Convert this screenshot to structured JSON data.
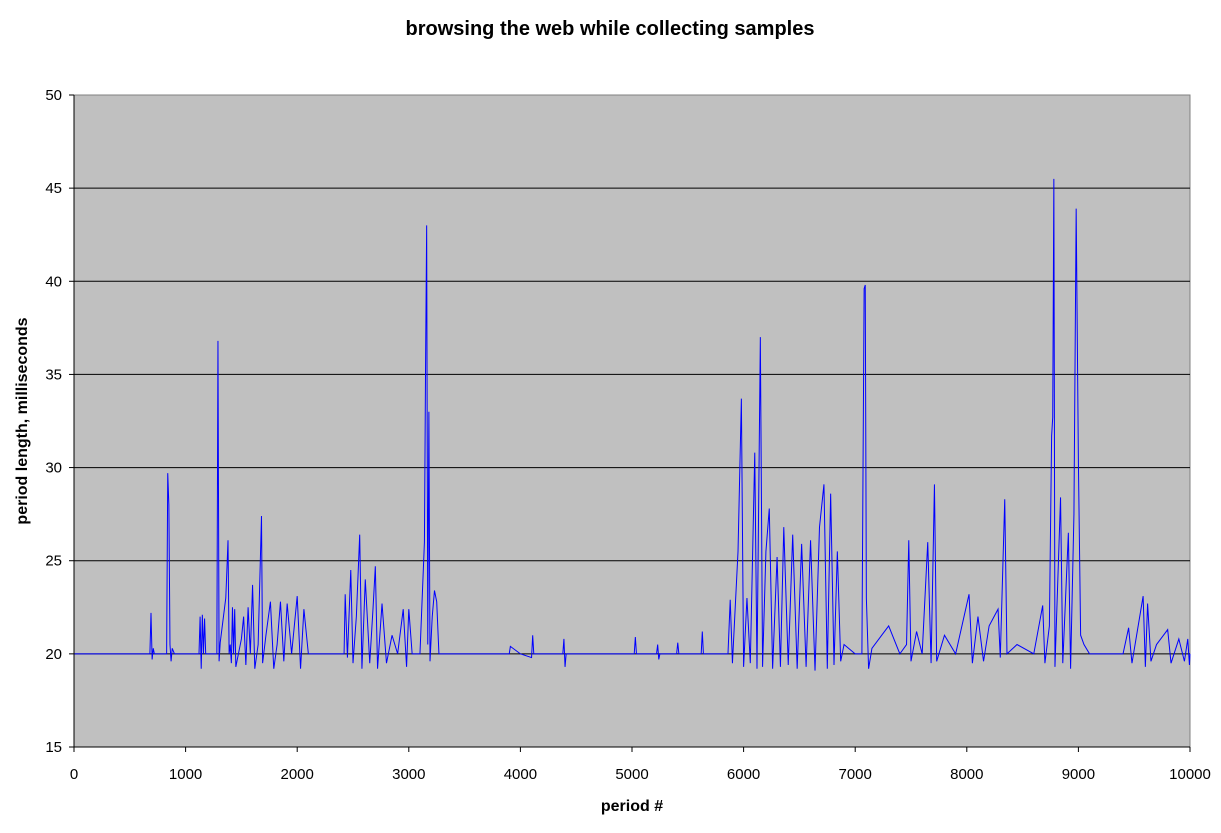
{
  "chart_data": {
    "type": "line",
    "title": "browsing the web while collecting samples",
    "xlabel": "period #",
    "ylabel": "period length, milliseconds",
    "xlim": [
      0,
      10000
    ],
    "ylim": [
      15,
      50
    ],
    "xticks": [
      0,
      1000,
      2000,
      3000,
      4000,
      5000,
      6000,
      7000,
      8000,
      9000,
      10000
    ],
    "yticks": [
      15,
      20,
      25,
      30,
      35,
      40,
      45,
      50
    ],
    "grid": "horizontal major gridlines",
    "legend": "none",
    "baseline": 20,
    "colors": {
      "series": "#0000ff",
      "plot_area": "#c0c0c0",
      "gridline": "#000000"
    },
    "series": [
      {
        "values_note_free": true,
        "points": [
          [
            0,
            20
          ],
          [
            680,
            20
          ],
          [
            690,
            22.2
          ],
          [
            700,
            19.7
          ],
          [
            710,
            20.3
          ],
          [
            720,
            20
          ],
          [
            830,
            20
          ],
          [
            840,
            29.7
          ],
          [
            850,
            28
          ],
          [
            860,
            20.5
          ],
          [
            870,
            19.6
          ],
          [
            880,
            20.3
          ],
          [
            900,
            20
          ],
          [
            1120,
            20
          ],
          [
            1130,
            22
          ],
          [
            1140,
            19.2
          ],
          [
            1150,
            22.1
          ],
          [
            1160,
            20
          ],
          [
            1170,
            21.9
          ],
          [
            1180,
            20
          ],
          [
            1280,
            20
          ],
          [
            1290,
            36.8
          ],
          [
            1300,
            19.6
          ],
          [
            1310,
            20.6
          ],
          [
            1360,
            23
          ],
          [
            1370,
            24.5
          ],
          [
            1380,
            26.1
          ],
          [
            1390,
            20
          ],
          [
            1400,
            20.5
          ],
          [
            1410,
            19.5
          ],
          [
            1420,
            22.5
          ],
          [
            1430,
            20
          ],
          [
            1440,
            22.4
          ],
          [
            1450,
            19.3
          ],
          [
            1500,
            20.8
          ],
          [
            1520,
            22
          ],
          [
            1540,
            19.4
          ],
          [
            1560,
            22.5
          ],
          [
            1580,
            20
          ],
          [
            1600,
            23.7
          ],
          [
            1620,
            19.2
          ],
          [
            1650,
            20.5
          ],
          [
            1680,
            27.4
          ],
          [
            1690,
            19.5
          ],
          [
            1720,
            21
          ],
          [
            1760,
            22.8
          ],
          [
            1790,
            19.2
          ],
          [
            1820,
            20.5
          ],
          [
            1850,
            22.8
          ],
          [
            1880,
            19.6
          ],
          [
            1910,
            22.7
          ],
          [
            1950,
            20
          ],
          [
            2000,
            23.1
          ],
          [
            2030,
            19.2
          ],
          [
            2060,
            22.4
          ],
          [
            2100,
            20
          ],
          [
            2420,
            20
          ],
          [
            2430,
            23.2
          ],
          [
            2450,
            19.8
          ],
          [
            2480,
            24.5
          ],
          [
            2500,
            19.5
          ],
          [
            2530,
            22
          ],
          [
            2560,
            26.4
          ],
          [
            2580,
            19.2
          ],
          [
            2610,
            24
          ],
          [
            2650,
            19.5
          ],
          [
            2680,
            22.5
          ],
          [
            2700,
            24.7
          ],
          [
            2720,
            19.2
          ],
          [
            2760,
            22.7
          ],
          [
            2800,
            19.5
          ],
          [
            2850,
            21
          ],
          [
            2900,
            20
          ],
          [
            2950,
            22.4
          ],
          [
            2980,
            19.3
          ],
          [
            3000,
            22.4
          ],
          [
            3030,
            20
          ],
          [
            3100,
            20
          ],
          [
            3140,
            26
          ],
          [
            3150,
            35.3
          ],
          [
            3160,
            43
          ],
          [
            3170,
            20.5
          ],
          [
            3180,
            33
          ],
          [
            3190,
            19.6
          ],
          [
            3210,
            22
          ],
          [
            3230,
            23.4
          ],
          [
            3250,
            22.8
          ],
          [
            3270,
            20
          ],
          [
            3900,
            20
          ],
          [
            3910,
            20.4
          ],
          [
            4000,
            20
          ],
          [
            4100,
            19.8
          ],
          [
            4110,
            21
          ],
          [
            4120,
            20
          ],
          [
            4380,
            20
          ],
          [
            4390,
            20.8
          ],
          [
            4400,
            19.3
          ],
          [
            4410,
            20
          ],
          [
            5020,
            20
          ],
          [
            5030,
            20.9
          ],
          [
            5040,
            20
          ],
          [
            5220,
            20
          ],
          [
            5230,
            20.5
          ],
          [
            5240,
            19.7
          ],
          [
            5250,
            20
          ],
          [
            5400,
            20
          ],
          [
            5410,
            20.6
          ],
          [
            5420,
            20
          ],
          [
            5620,
            20
          ],
          [
            5630,
            21.2
          ],
          [
            5640,
            20
          ],
          [
            5860,
            20
          ],
          [
            5880,
            22.9
          ],
          [
            5900,
            19.5
          ],
          [
            5950,
            25.5
          ],
          [
            5980,
            33.7
          ],
          [
            6000,
            19.3
          ],
          [
            6030,
            23
          ],
          [
            6060,
            19.5
          ],
          [
            6100,
            30.8
          ],
          [
            6120,
            19.2
          ],
          [
            6150,
            37
          ],
          [
            6170,
            19.3
          ],
          [
            6200,
            25.5
          ],
          [
            6230,
            27.8
          ],
          [
            6260,
            19.2
          ],
          [
            6300,
            25.2
          ],
          [
            6330,
            19.3
          ],
          [
            6360,
            26.8
          ],
          [
            6400,
            19.4
          ],
          [
            6440,
            26.4
          ],
          [
            6480,
            19.2
          ],
          [
            6520,
            25.9
          ],
          [
            6560,
            19.3
          ],
          [
            6600,
            26.1
          ],
          [
            6640,
            19.1
          ],
          [
            6680,
            26.8
          ],
          [
            6720,
            29.1
          ],
          [
            6750,
            19.2
          ],
          [
            6780,
            28.6
          ],
          [
            6810,
            19.4
          ],
          [
            6840,
            25.5
          ],
          [
            6870,
            19.6
          ],
          [
            6900,
            20.5
          ],
          [
            7000,
            20
          ],
          [
            7060,
            20
          ],
          [
            7080,
            39.6
          ],
          [
            7090,
            39.8
          ],
          [
            7100,
            23
          ],
          [
            7120,
            19.2
          ],
          [
            7150,
            20.3
          ],
          [
            7300,
            21.5
          ],
          [
            7400,
            20
          ],
          [
            7460,
            20.5
          ],
          [
            7480,
            26.1
          ],
          [
            7500,
            19.6
          ],
          [
            7550,
            21.2
          ],
          [
            7600,
            20
          ],
          [
            7650,
            26
          ],
          [
            7680,
            19.5
          ],
          [
            7710,
            29.1
          ],
          [
            7730,
            19.6
          ],
          [
            7800,
            21
          ],
          [
            7900,
            20
          ],
          [
            8020,
            23.2
          ],
          [
            8050,
            19.5
          ],
          [
            8100,
            22
          ],
          [
            8150,
            19.6
          ],
          [
            8200,
            21.5
          ],
          [
            8280,
            22.4
          ],
          [
            8300,
            19.8
          ],
          [
            8340,
            28.3
          ],
          [
            8360,
            20
          ],
          [
            8450,
            20.5
          ],
          [
            8600,
            20
          ],
          [
            8680,
            22.6
          ],
          [
            8700,
            19.5
          ],
          [
            8740,
            21.5
          ],
          [
            8760,
            31.7
          ],
          [
            8770,
            32.7
          ],
          [
            8780,
            45.5
          ],
          [
            8790,
            19.3
          ],
          [
            8840,
            28.4
          ],
          [
            8860,
            19.5
          ],
          [
            8910,
            26.5
          ],
          [
            8930,
            19.2
          ],
          [
            8960,
            27.5
          ],
          [
            8980,
            43.9
          ],
          [
            9000,
            30.3
          ],
          [
            9020,
            21
          ],
          [
            9050,
            20.5
          ],
          [
            9100,
            20
          ],
          [
            9400,
            20
          ],
          [
            9450,
            21.4
          ],
          [
            9480,
            19.5
          ],
          [
            9580,
            23.1
          ],
          [
            9600,
            19.3
          ],
          [
            9620,
            22.7
          ],
          [
            9650,
            19.6
          ],
          [
            9700,
            20.5
          ],
          [
            9800,
            21.3
          ],
          [
            9830,
            19.5
          ],
          [
            9900,
            20.8
          ],
          [
            9950,
            19.6
          ],
          [
            9980,
            20.8
          ],
          [
            9995,
            19.4
          ],
          [
            10000,
            20
          ]
        ]
      }
    ]
  }
}
